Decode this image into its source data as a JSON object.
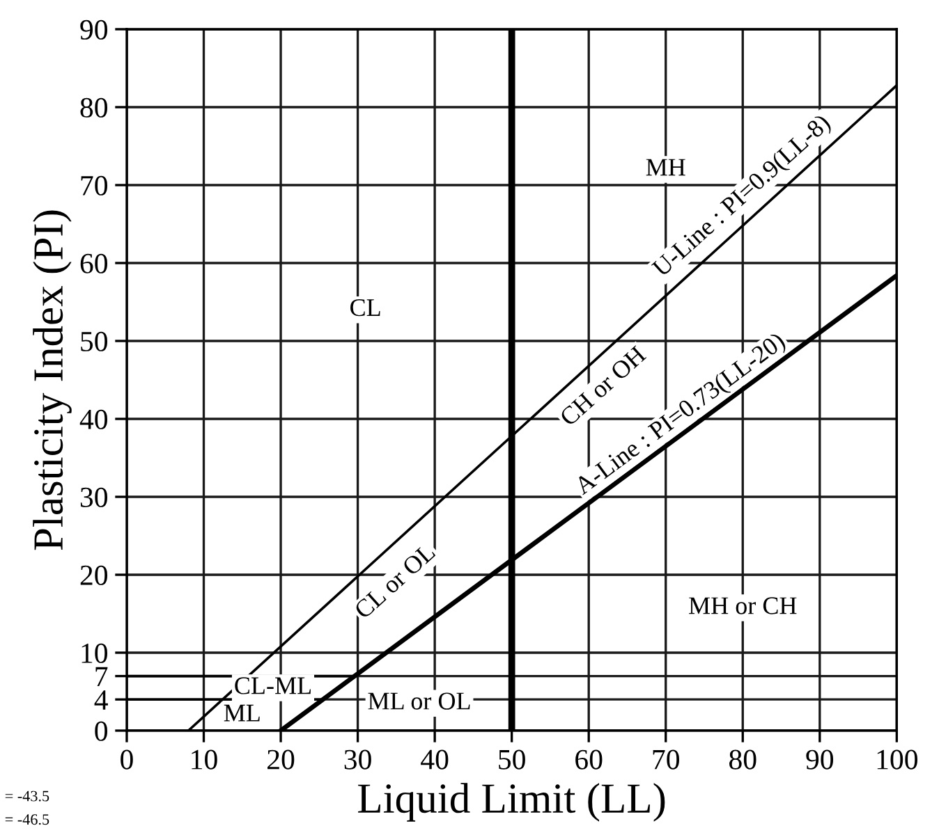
{
  "chart_data": {
    "type": "line",
    "xlabel": "Liquid Limit (LL)",
    "ylabel": "Plasticity Index (PI)",
    "series": [
      {
        "color": "#000000",
        "x": [
          8,
          100
        ],
        "values": [
          0,
          82.8
        ]
      },
      {
        "color": "#000000",
        "x": [
          20,
          100
        ],
        "values": [
          0,
          58.4
        ]
      },
      {
        "color": "#000000",
        "x": [
          0,
          25.5
        ],
        "values": [
          4,
          4
        ]
      },
      {
        "color": "#000000",
        "x": [
          0,
          29.6
        ],
        "values": [
          7,
          7
        ]
      }
    ],
    "xlim": [
      0,
      100
    ],
    "ylim": [
      0,
      90
    ],
    "xticks": [
      0,
      10,
      20,
      30,
      40,
      50,
      60,
      70,
      80,
      90,
      100
    ],
    "yticks": [
      0,
      4,
      7,
      10,
      20,
      30,
      40,
      50,
      60,
      70,
      80,
      90
    ],
    "grid": true,
    "marker": "none",
    "line_style": "solid",
    "ref_lines": [
      {
        "axis": "x",
        "value": 50,
        "label": null,
        "color": "#000000"
      }
    ],
    "annotations": [
      "MH",
      "CL",
      "MH or CH",
      "ML or OL",
      "ML",
      "CL-ML",
      "CL or OL",
      "CH or OH",
      "U-Line : PI=0.9(LL-8)",
      "A-Line : PI=0.73(LL-20)",
      "= -43.5",
      "= -46.5"
    ]
  }
}
